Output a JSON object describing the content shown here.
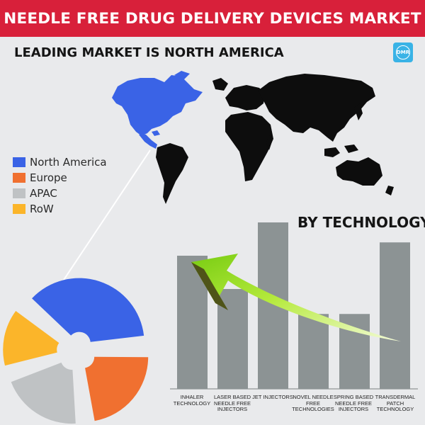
{
  "header": {
    "title": "NEEDLE FREE DRUG DELIVERY DEVICES MARKET"
  },
  "subheader": {
    "title": "LEADING MARKET IS NORTH AMERICA"
  },
  "logo": {
    "text": "DMR",
    "color": "#39b3e6"
  },
  "map": {
    "highlight_region": "North America",
    "highlight_color": "#3a63e6",
    "other_color": "#0d0d0d"
  },
  "legend": {
    "items": [
      {
        "label": "North America",
        "color": "#3a63e6"
      },
      {
        "label": "Europe",
        "color": "#f07030"
      },
      {
        "label": "APAC",
        "color": "#bfc2c4"
      },
      {
        "label": "RoW",
        "color": "#fbb52a"
      }
    ]
  },
  "technology": {
    "title": "BY TECHNOLOGY",
    "bar_color": "#8c9394",
    "arrow_color": "#8cdc1a",
    "categories": [
      "INHALER TECHNOLOGY",
      "LASER BASED NEEDLE FREE INJECTORS",
      "JET INJECTORS",
      "NOVEL NEEDLE FREE TECHNOLOGIES",
      "SPRING BASED NEEDLE FREE INJECTORS",
      "TRANSDERMAL PATCH TECHNOLOGY"
    ]
  },
  "chart_data": [
    {
      "type": "pie",
      "title": "",
      "categories": [
        "North America",
        "Europe",
        "APAC",
        "RoW"
      ],
      "values": [
        38,
        24,
        22,
        16
      ],
      "colors": [
        "#3a63e6",
        "#f07030",
        "#bfc2c4",
        "#fbb52a"
      ],
      "exploded": true,
      "legend_position": "left"
    },
    {
      "type": "bar",
      "title": "BY TECHNOLOGY",
      "xlabel": "",
      "ylabel": "",
      "categories": [
        "INHALER TECHNOLOGY",
        "LASER BASED NEEDLE FREE INJECTORS",
        "JET INJECTORS",
        "NOVEL NEEDLE FREE TECHNOLOGIES",
        "SPRING BASED NEEDLE FREE INJECTORS",
        "TRANSDERMAL PATCH TECHNOLOGY"
      ],
      "values": [
        80,
        60,
        100,
        45,
        45,
        88
      ],
      "ylim": [
        0,
        100
      ],
      "grid": false
    }
  ]
}
